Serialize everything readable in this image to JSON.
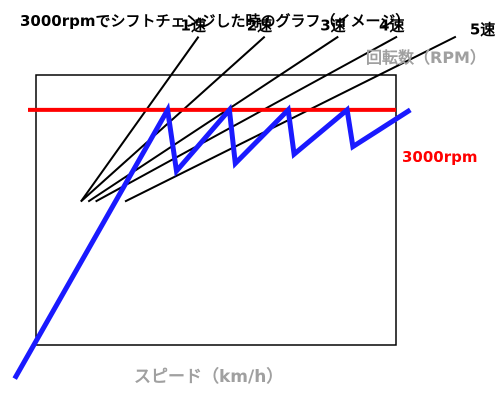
{
  "chart_data": {
    "type": "line",
    "title": "3000rpmでシフトチェンジした時のグラフ（イメージ）",
    "xlabel": "スピード（km/h）",
    "ylabel": "回転数（RPM）",
    "reference_line": {
      "label": "3000rpm",
      "value": 3000,
      "color": "#ff0000"
    },
    "gear_lines": [
      {
        "name": "1速",
        "x": [
          0.5,
          8.5
        ],
        "y": [
          0,
          5400
        ]
      },
      {
        "name": "2速",
        "x": [
          0.5,
          13.0
        ],
        "y": [
          0,
          5400
        ]
      },
      {
        "name": "3速",
        "x": [
          1.0,
          18.0
        ],
        "y": [
          0,
          5400
        ]
      },
      {
        "name": "4速",
        "x": [
          1.5,
          22.0
        ],
        "y": [
          0,
          5400
        ]
      },
      {
        "name": "5速",
        "x": [
          3.5,
          26.0
        ],
        "y": [
          0,
          5400
        ]
      }
    ],
    "shift_path": {
      "color": "#1a1aff",
      "x": [
        -4.0,
        6.4,
        7.0,
        10.6,
        11.0,
        14.6,
        15.0,
        18.6,
        19.0,
        22.9
      ],
      "y": [
        -5800,
        3000,
        1000,
        3000,
        1250,
        3000,
        1550,
        3000,
        1800,
        3000
      ]
    },
    "xlim": [
      -5,
      29
    ],
    "ylim": [
      -6500,
      6600
    ],
    "grid": false,
    "colors": {
      "gear_line": "#000000",
      "axes_frame": "#000000"
    }
  }
}
